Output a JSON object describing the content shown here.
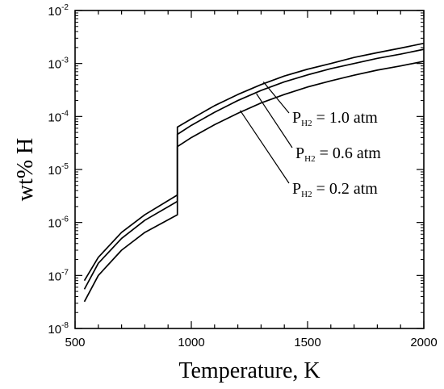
{
  "chart_data": {
    "type": "line",
    "xlabel": "Temperature, K",
    "ylabel": "wt% H",
    "xlim": [
      500,
      2000
    ],
    "ylim": [
      1e-08,
      0.01
    ],
    "yscale": "log",
    "grid": false,
    "x_ticks": [
      500,
      1000,
      1500,
      2000
    ],
    "x_tick_labels": [
      "500",
      "1000",
      "1500",
      "2000"
    ],
    "y_ticks": [
      1e-08,
      1e-07,
      1e-06,
      1e-05,
      0.0001,
      0.001,
      0.01
    ],
    "y_tick_labels": [
      {
        "base": "10",
        "exp": "-8"
      },
      {
        "base": "10",
        "exp": "-7"
      },
      {
        "base": "10",
        "exp": "-6"
      },
      {
        "base": "10",
        "exp": "-5"
      },
      {
        "base": "10",
        "exp": "-4"
      },
      {
        "base": "10",
        "exp": "-3"
      },
      {
        "base": "10",
        "exp": "-2"
      }
    ],
    "series": [
      {
        "annotation": {
          "prefix": "P",
          "sub": "H2",
          "text": " = 1.0 atm"
        },
        "label_anchor": {
          "x": 1310,
          "y": 0.00045
        },
        "segments": [
          {
            "x": [
              540,
              600,
              700,
              800,
              940
            ],
            "y": [
              8e-08,
              2.2e-07,
              6.5e-07,
              1.4e-06,
              3.3e-06
            ]
          },
          {
            "x": [
              940,
              1000,
              1100,
              1200,
              1300,
              1400,
              1500,
              1600,
              1700,
              1800,
              1900,
              2000
            ],
            "y": [
              6.3e-05,
              9e-05,
              0.00016,
              0.00026,
              0.0004,
              0.00058,
              0.00078,
              0.001,
              0.0013,
              0.0016,
              0.00195,
              0.0024
            ]
          }
        ]
      },
      {
        "annotation": {
          "prefix": "P",
          "sub": "H2",
          "text": " = 0.6 atm"
        },
        "label_anchor": {
          "x": 1280,
          "y": 0.00027
        },
        "segments": [
          {
            "x": [
              540,
              600,
              700,
              800,
              940
            ],
            "y": [
              5.5e-08,
              1.7e-07,
              5e-07,
              1.1e-06,
              2.5e-06
            ]
          },
          {
            "x": [
              940,
              1000,
              1100,
              1200,
              1300,
              1400,
              1500,
              1600,
              1700,
              1800,
              1900,
              2000
            ],
            "y": [
              4.6e-05,
              6.8e-05,
              0.00012,
              0.0002,
              0.00031,
              0.00045,
              0.00061,
              0.0008,
              0.001,
              0.00125,
              0.0015,
              0.00185
            ]
          }
        ]
      },
      {
        "annotation": {
          "prefix": "P",
          "sub": "H2",
          "text": " = 0.2 atm"
        },
        "label_anchor": {
          "x": 1210,
          "y": 0.00013
        },
        "segments": [
          {
            "x": [
              540,
              600,
              700,
              800,
              940
            ],
            "y": [
              3.2e-08,
              1e-07,
              3e-07,
              6.5e-07,
              1.4e-06
            ]
          },
          {
            "x": [
              940,
              1000,
              1100,
              1200,
              1300,
              1400,
              1500,
              1600,
              1700,
              1800,
              1900,
              2000
            ],
            "y": [
              2.7e-05,
              4e-05,
              7e-05,
              0.000115,
              0.00018,
              0.00026,
              0.00036,
              0.00047,
              0.0006,
              0.00075,
              0.0009,
              0.0011
            ]
          }
        ]
      }
    ]
  }
}
